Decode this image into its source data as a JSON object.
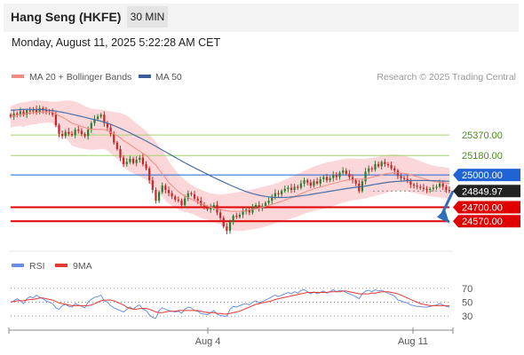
{
  "header": {
    "title": "Hang Seng (HKFE)",
    "timeframe": "30 MIN",
    "datetime": "Monday, August 11, 2025 5:22:28 AM CET"
  },
  "legend": {
    "bollinger": "MA 20 + Bollinger Bands",
    "ma50": "MA 50",
    "credit": "Research © 2025 Trading Central",
    "rsi": "RSI",
    "rsi_ma": "9MA"
  },
  "colors": {
    "up": "#2e7d32",
    "down": "#c62828",
    "band_fill": "#fbd7d9",
    "ma20": "#f28b82",
    "ma50": "#4a6fa5",
    "resistance": "#a5d36e",
    "pivot": "#1f63d6",
    "support": "#e00000",
    "price_tag": "#222222",
    "rsi": "#6b8fe0",
    "rsi_ma": "#e53935"
  },
  "chart_data": [
    {
      "type": "candlestick",
      "x_labels": [
        "Aug 4",
        "Aug 11"
      ],
      "ylim": [
        24300,
        25800
      ],
      "levels": [
        {
          "label": "25370.00",
          "value": 25370,
          "kind": "resistance"
        },
        {
          "label": "25180.00",
          "value": 25180,
          "kind": "resistance"
        },
        {
          "label": "25000.00",
          "value": 25000,
          "kind": "pivot"
        },
        {
          "label": "24849.97",
          "value": 24849.97,
          "kind": "last"
        },
        {
          "label": "24700.00",
          "value": 24700,
          "kind": "support"
        },
        {
          "label": "24570.00",
          "value": 24570,
          "kind": "support"
        }
      ],
      "close": [
        25540,
        25570,
        25560,
        25590,
        25560,
        25600,
        25590,
        25610,
        25580,
        25620,
        25600,
        25590,
        25580,
        25560,
        25460,
        25380,
        25360,
        25400,
        25380,
        25370,
        25420,
        25410,
        25380,
        25360,
        25420,
        25480,
        25520,
        25540,
        25560,
        25480,
        25440,
        25380,
        25300,
        25240,
        25160,
        25100,
        25120,
        25150,
        25110,
        25140,
        25160,
        25100,
        25060,
        24950,
        24860,
        24760,
        24840,
        24900,
        24860,
        24830,
        24800,
        24770,
        24760,
        24720,
        24780,
        24830,
        24820,
        24780,
        24760,
        24720,
        24700,
        24680,
        24700,
        24720,
        24650,
        24600,
        24520,
        24480,
        24560,
        24620,
        24610,
        24630,
        24660,
        24680,
        24650,
        24700,
        24720,
        24690,
        24710,
        24740,
        24760,
        24800,
        24830,
        24820,
        24850,
        24870,
        24880,
        24860,
        24890,
        24880,
        24920,
        24950,
        24930,
        24900,
        24940,
        24920,
        24960,
        24980,
        24950,
        24970,
        25000,
        24980,
        25020,
        25040,
        25010,
        24980,
        24950,
        24920,
        24850,
        24940,
        25030,
        25060,
        25050,
        25100,
        25080,
        25120,
        25100,
        25090,
        25060,
        25040,
        24990,
        24970,
        24960,
        24940,
        24910,
        24900,
        24890,
        24880,
        24870,
        24860,
        24870,
        24880,
        24890,
        24920,
        24890,
        24860,
        24849.97
      ],
      "ma20": [
        25540,
        25550,
        25555,
        25562,
        25560,
        25570,
        25575,
        25580,
        25580,
        25585,
        25585,
        25585,
        25583,
        25580,
        25565,
        25550,
        25535,
        25520,
        25500,
        25480,
        25470,
        25462,
        25450,
        25440,
        25430,
        25425,
        25422,
        25422,
        25424,
        25420,
        25410,
        25395,
        25380,
        25365,
        25345,
        25320,
        25300,
        25280,
        25260,
        25240,
        25220,
        25200,
        25180,
        25150,
        25120,
        25090,
        25050,
        25010,
        24970,
        24930,
        24900,
        24870,
        24845,
        24822,
        24805,
        24790,
        24775,
        24760,
        24745,
        24730,
        24720,
        24710,
        24700,
        24692,
        24685,
        24678,
        24672,
        24666,
        24662,
        24660,
        24660,
        24662,
        24665,
        24670,
        24675,
        24680,
        24686,
        24692,
        24700,
        24708,
        24716,
        24725,
        24735,
        24745,
        24755,
        24766,
        24777,
        24788,
        24800,
        24812,
        24825,
        24838,
        24850,
        24860,
        24870,
        24880,
        24888,
        24896,
        24904,
        24912,
        24920,
        24928,
        24936,
        24944,
        24950,
        24955,
        24958,
        24960,
        24960,
        24962,
        24966,
        24972,
        24978,
        24985,
        24992,
        25000,
        25008,
        25014,
        25018,
        25020,
        25020,
        25018,
        25014,
        25008,
        25000,
        24992,
        24983,
        24974,
        24965,
        24956,
        24948,
        24942,
        24937,
        24933,
        24929,
        24925,
        24920
      ],
      "band_upper": [
        25640,
        25650,
        25660,
        25670,
        25675,
        25680,
        25685,
        25690,
        25690,
        25690,
        25688,
        25686,
        25682,
        25680,
        25680,
        25682,
        25686,
        25690,
        25690,
        25688,
        25680,
        25670,
        25655,
        25640,
        25625,
        25615,
        25610,
        25608,
        25606,
        25600,
        25595,
        25590,
        25585,
        25580,
        25575,
        25565,
        25550,
        25530,
        25505,
        25480,
        25455,
        25430,
        25405,
        25375,
        25345,
        25310,
        25270,
        25225,
        25180,
        25130,
        25085,
        25045,
        25010,
        24980,
        24955,
        24930,
        24908,
        24890,
        24875,
        24862,
        24850,
        24838,
        24830,
        24825,
        24820,
        24818,
        24820,
        24825,
        24830,
        24835,
        24840,
        24845,
        24850,
        24855,
        24860,
        24866,
        24872,
        24880,
        24888,
        24895,
        24902,
        24910,
        24920,
        24930,
        24942,
        24955,
        24968,
        24982,
        24996,
        25010,
        25024,
        25038,
        25052,
        25064,
        25076,
        25088,
        25098,
        25108,
        25116,
        25122,
        25128,
        25134,
        25140,
        25146,
        25150,
        25152,
        25152,
        25150,
        25148,
        25148,
        25150,
        25154,
        25158,
        25164,
        25170,
        25178,
        25184,
        25188,
        25190,
        25190,
        25188,
        25184,
        25178,
        25170,
        25160,
        25150,
        25140,
        25128,
        25116,
        25104,
        25094,
        25086,
        25080,
        25076,
        25072,
        25068,
        25064
      ],
      "band_lower": [
        25440,
        25450,
        25450,
        25455,
        25445,
        25460,
        25465,
        25470,
        25470,
        25480,
        25482,
        25484,
        25484,
        25480,
        25450,
        25418,
        25384,
        25350,
        25310,
        25272,
        25260,
        25254,
        25245,
        25240,
        25235,
        25235,
        25234,
        25236,
        25242,
        25240,
        25225,
        25200,
        25175,
        25150,
        25115,
        25075,
        25050,
        25030,
        25015,
        25000,
        24985,
        24970,
        24955,
        24925,
        24895,
        24870,
        24830,
        24795,
        24760,
        24730,
        24715,
        24695,
        24680,
        24664,
        24655,
        24650,
        24642,
        24630,
        24615,
        24598,
        24590,
        24582,
        24570,
        24559,
        24550,
        24538,
        24524,
        24507,
        24494,
        24485,
        24480,
        24479,
        24480,
        24485,
        24490,
        24494,
        24500,
        24504,
        24512,
        24521,
        24530,
        24540,
        24550,
        24560,
        24568,
        24577,
        24586,
        24594,
        24604,
        24614,
        24626,
        24638,
        24648,
        24656,
        24664,
        24672,
        24678,
        24684,
        24692,
        24702,
        24712,
        24722,
        24732,
        24742,
        24750,
        24758,
        24764,
        24770,
        24772,
        24776,
        24782,
        24790,
        24798,
        24806,
        24814,
        24822,
        24832,
        24840,
        24846,
        24850,
        24852,
        24852,
        24850,
        24846,
        24840,
        24834,
        24826,
        24820,
        24814,
        24808,
        24802,
        24798,
        24794,
        24790,
        24786,
        24782,
        24776
      ],
      "ma50": [
        25600,
        25602,
        25604,
        25606,
        25607,
        25608,
        25608,
        25608,
        25607,
        25606,
        25605,
        25603,
        25600,
        25597,
        25592,
        25587,
        25582,
        25576,
        25570,
        25563,
        25556,
        25549,
        25542,
        25535,
        25527,
        25520,
        25513,
        25506,
        25499,
        25490,
        25480,
        25470,
        25458,
        25445,
        25432,
        25418,
        25404,
        25390,
        25375,
        25360,
        25345,
        25330,
        25314,
        25298,
        25282,
        25265,
        25248,
        25231,
        25214,
        25197,
        25180,
        25163,
        25146,
        25130,
        25113,
        25097,
        25081,
        25066,
        25051,
        25036,
        25021,
        25006,
        24991,
        24976,
        24962,
        24948,
        24934,
        24920,
        24906,
        24893,
        24880,
        24868,
        24856,
        24845,
        24835,
        24826,
        24818,
        24811,
        24805,
        24800,
        24796,
        24793,
        24791,
        24790,
        24790,
        24791,
        24793,
        24795,
        24798,
        24801,
        24805,
        24809,
        24813,
        24818,
        24823,
        24828,
        24833,
        24838,
        24843,
        24848,
        24853,
        24858,
        24863,
        24868,
        24873,
        24877,
        24881,
        24885,
        24888,
        24892,
        24897,
        24902,
        24907,
        24912,
        24917,
        24922,
        24927,
        24931,
        24935,
        24938,
        24940,
        24942,
        24944,
        24946,
        24947,
        24948,
        24948,
        24948,
        24948,
        24948,
        24947,
        24946,
        24945,
        24944,
        24943,
        24942,
        24941
      ]
    },
    {
      "type": "line",
      "x_labels": [
        "Aug 4",
        "Aug 11"
      ],
      "y_ticks": [
        30,
        50,
        70
      ],
      "ylim": [
        15,
        85
      ],
      "series": [
        {
          "name": "RSI",
          "values": [
            50,
            52,
            55,
            52,
            48,
            55,
            58,
            56,
            60,
            57,
            55,
            52,
            50,
            48,
            42,
            40,
            45,
            47,
            44,
            43,
            48,
            46,
            44,
            42,
            50,
            54,
            57,
            58,
            60,
            52,
            50,
            45,
            42,
            40,
            38,
            36,
            40,
            43,
            40,
            44,
            46,
            40,
            38,
            32,
            28,
            27,
            38,
            42,
            40,
            38,
            37,
            36,
            37,
            34,
            40,
            43,
            42,
            38,
            37,
            34,
            33,
            32,
            35,
            38,
            33,
            31,
            30,
            30,
            40,
            44,
            43,
            45,
            47,
            48,
            46,
            50,
            52,
            49,
            51,
            53,
            55,
            58,
            60,
            58,
            60,
            62,
            64,
            62,
            65,
            63,
            67,
            68,
            65,
            62,
            65,
            62,
            64,
            66,
            63,
            65,
            68,
            65,
            67,
            66,
            64,
            62,
            60,
            58,
            55,
            62,
            66,
            67,
            65,
            68,
            66,
            67,
            65,
            63,
            61,
            59,
            53,
            52,
            50,
            49,
            46,
            45,
            44,
            44,
            43,
            43,
            44,
            45,
            46,
            48,
            46,
            44,
            43
          ]
        },
        {
          "name": "9MA",
          "values": [
            50,
            51,
            52,
            52,
            52,
            53,
            54,
            54,
            55,
            56,
            56,
            55,
            54,
            53,
            51,
            49,
            48,
            47,
            46,
            45,
            45,
            45,
            45,
            45,
            45,
            46,
            48,
            50,
            52,
            53,
            53,
            53,
            52,
            50,
            48,
            46,
            43,
            41,
            40,
            40,
            41,
            41,
            41,
            40,
            38,
            36,
            35,
            35,
            36,
            37,
            37,
            37,
            38,
            38,
            38,
            38,
            38,
            38,
            38,
            37,
            36,
            35,
            35,
            35,
            34,
            34,
            33,
            33,
            34,
            35,
            36,
            37,
            39,
            41,
            43,
            45,
            47,
            48,
            49,
            50,
            51,
            52,
            54,
            55,
            56,
            57,
            58,
            59,
            60,
            61,
            62,
            63,
            64,
            64,
            64,
            64,
            64,
            64,
            64,
            65,
            65,
            65,
            65,
            66,
            66,
            65,
            64,
            63,
            62,
            62,
            62,
            62,
            63,
            63,
            64,
            65,
            65,
            65,
            64,
            63,
            62,
            60,
            58,
            56,
            54,
            52,
            50,
            48,
            47,
            46,
            45,
            45,
            45,
            45,
            45,
            45,
            45
          ]
        }
      ]
    }
  ]
}
